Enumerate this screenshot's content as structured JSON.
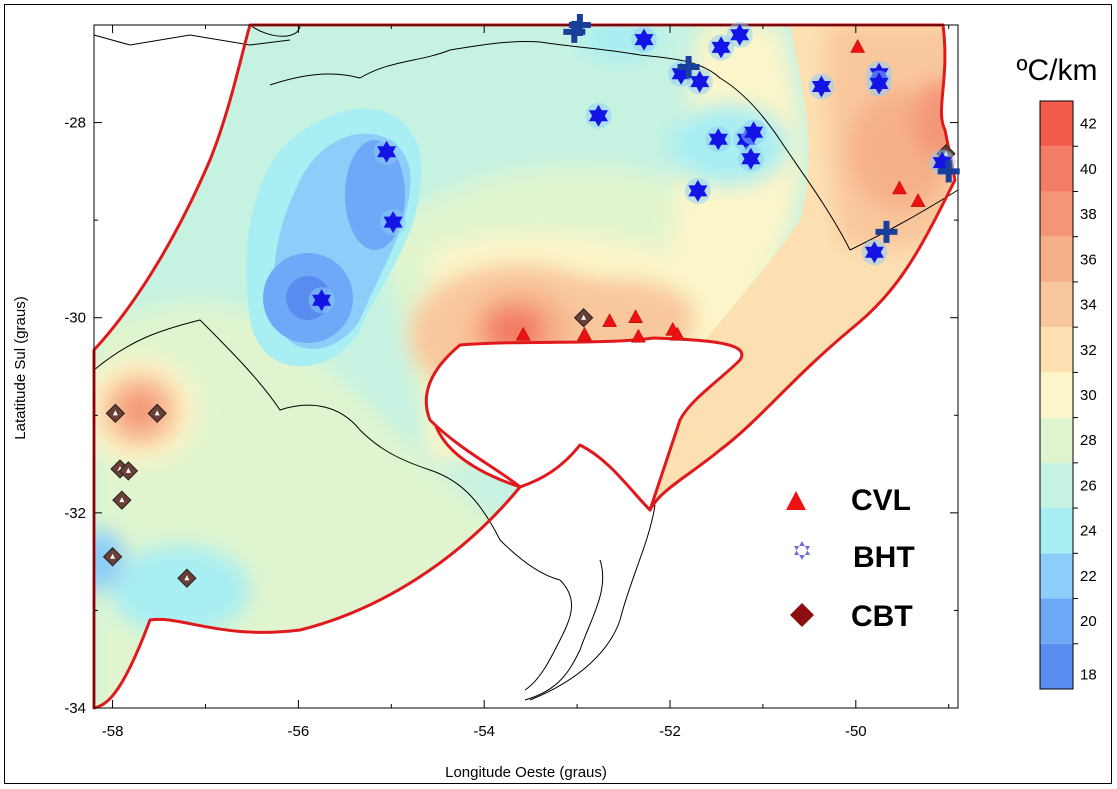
{
  "figure": {
    "xlabel": "Longitude Oeste (graus)",
    "ylabel": "Latatitude Sul (graus)",
    "x_ticks": [
      "-58",
      "-56",
      "-54",
      "-52",
      "-50"
    ],
    "y_ticks": [
      "-28",
      "-30",
      "-32",
      "-34"
    ],
    "xlim": [
      -58.2,
      -48.9
    ],
    "ylim": [
      -34.0,
      -27.0
    ]
  },
  "colorbar": {
    "title": "ºC/km",
    "levels": [
      "18",
      "20",
      "22",
      "24",
      "26",
      "28",
      "30",
      "32",
      "34",
      "36",
      "38",
      "40",
      "42"
    ],
    "colors": {
      "18": "#5a8cf0",
      "20": "#6fa8f6",
      "22": "#8ccdfa",
      "24": "#a9eef3",
      "26": "#c6f2e2",
      "28": "#e0f5cf",
      "30": "#fbf5c9",
      "32": "#fde0b2",
      "34": "#f9c79c",
      "36": "#f6b089",
      "38": "#f39677",
      "40": "#f37c64",
      "42": "#f25c4c"
    }
  },
  "legend": {
    "items": [
      {
        "label": "CVL",
        "symbol": "triangle",
        "color": "#ee1111"
      },
      {
        "label": "BHT",
        "symbol": "star6",
        "color": "#6f6fd6"
      },
      {
        "label": "CBT",
        "symbol": "diamond",
        "color": "#8c0e0e"
      }
    ]
  },
  "colors": {
    "boundary": "#e0191c",
    "cvl": "#ee1111",
    "bht": "#1414e6",
    "cross": "#1a3f9a",
    "cbt": "#6b3f36"
  },
  "sites": {
    "cvl": [
      {
        "lon": -53.58,
        "lat": -30.17
      },
      {
        "lon": -52.92,
        "lat": -30.17
      },
      {
        "lon": -52.65,
        "lat": -30.03
      },
      {
        "lon": -52.37,
        "lat": -29.99
      },
      {
        "lon": -52.34,
        "lat": -30.19
      },
      {
        "lon": -51.97,
        "lat": -30.12
      },
      {
        "lon": -51.92,
        "lat": -30.17
      },
      {
        "lon": -49.98,
        "lat": -27.22
      },
      {
        "lon": -49.53,
        "lat": -28.67
      },
      {
        "lon": -49.33,
        "lat": -28.8
      }
    ],
    "bht": [
      {
        "lon": -52.28,
        "lat": -27.15
      },
      {
        "lon": -51.45,
        "lat": -27.23
      },
      {
        "lon": -51.25,
        "lat": -27.1
      },
      {
        "lon": -51.88,
        "lat": -27.5
      },
      {
        "lon": -51.68,
        "lat": -27.58
      },
      {
        "lon": -49.75,
        "lat": -27.5
      },
      {
        "lon": -49.75,
        "lat": -27.6
      },
      {
        "lon": -50.37,
        "lat": -27.63
      },
      {
        "lon": -52.77,
        "lat": -27.93
      },
      {
        "lon": -51.48,
        "lat": -28.17
      },
      {
        "lon": -51.18,
        "lat": -28.17
      },
      {
        "lon": -51.1,
        "lat": -28.1
      },
      {
        "lon": -51.13,
        "lat": -28.37
      },
      {
        "lon": -51.7,
        "lat": -28.7
      },
      {
        "lon": -55.05,
        "lat": -28.3
      },
      {
        "lon": -54.98,
        "lat": -29.02
      },
      {
        "lon": -55.75,
        "lat": -29.82
      },
      {
        "lon": -49.8,
        "lat": -29.33
      },
      {
        "lon": -49.07,
        "lat": -28.41
      }
    ],
    "cross": [
      {
        "lon": -53.03,
        "lat": -27.07
      },
      {
        "lon": -52.97,
        "lat": -27.0
      },
      {
        "lon": -51.8,
        "lat": -27.43
      },
      {
        "lon": -49.67,
        "lat": -29.12
      },
      {
        "lon": -49.0,
        "lat": -28.5
      }
    ],
    "cbt": [
      {
        "lon": -57.97,
        "lat": -30.98
      },
      {
        "lon": -57.52,
        "lat": -30.98
      },
      {
        "lon": -57.92,
        "lat": -31.55
      },
      {
        "lon": -57.83,
        "lat": -31.57
      },
      {
        "lon": -57.9,
        "lat": -31.87
      },
      {
        "lon": -58.0,
        "lat": -32.45
      },
      {
        "lon": -57.2,
        "lat": -32.67
      },
      {
        "lon": -52.93,
        "lat": -30.0
      },
      {
        "lon": -49.03,
        "lat": -28.32
      }
    ]
  }
}
